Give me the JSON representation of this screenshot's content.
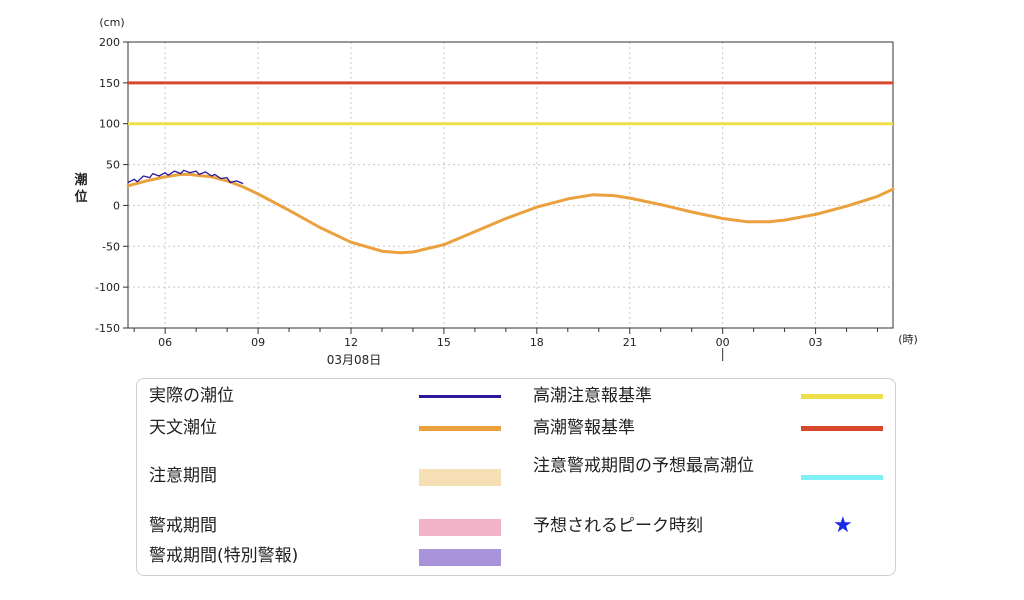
{
  "chart_data": {
    "type": "line",
    "y_unit": "(cm)",
    "ylabel": "潮位",
    "x_unit": "(時)",
    "date_label": "03月08日",
    "ylim": [
      -150,
      200
    ],
    "yticks": [
      200,
      150,
      100,
      50,
      0,
      -50,
      -100,
      -150
    ],
    "xlim_hours": [
      4.8,
      29.5
    ],
    "xticks": [
      {
        "hour": 6,
        "label": "06"
      },
      {
        "hour": 9,
        "label": "09"
      },
      {
        "hour": 12,
        "label": "12"
      },
      {
        "hour": 15,
        "label": "15"
      },
      {
        "hour": 18,
        "label": "18"
      },
      {
        "hour": 21,
        "label": "21"
      },
      {
        "hour": 24,
        "label": "00"
      },
      {
        "hour": 27,
        "label": "03"
      }
    ],
    "grid": true,
    "thresholds": [
      {
        "name": "高潮警報基準",
        "value": 150,
        "color": "#d9472b"
      },
      {
        "name": "高潮注意報基準",
        "value": 100,
        "color": "#eedf4a"
      }
    ],
    "series": [
      {
        "name": "天文潮位",
        "color": "#eaa13e",
        "x": [
          4.8,
          5.5,
          6.0,
          6.5,
          6.8,
          7.0,
          7.5,
          8.0,
          8.5,
          9.0,
          10.0,
          11.0,
          12.0,
          13.0,
          13.6,
          14.0,
          15.0,
          16.0,
          17.0,
          18.0,
          19.0,
          19.8,
          20.5,
          21.0,
          22.0,
          23.0,
          24.0,
          24.8,
          25.5,
          26.0,
          27.0,
          28.0,
          29.0,
          29.5
        ],
        "y": [
          24,
          31,
          35,
          38,
          38,
          37,
          35,
          30,
          23,
          14,
          -6,
          -27,
          -45,
          -56,
          -58,
          -57,
          -48,
          -32,
          -16,
          -2,
          8,
          13,
          12,
          9,
          1,
          -8,
          -16,
          -20,
          -20,
          -18,
          -11,
          -1,
          11,
          20
        ]
      },
      {
        "name": "実際の潮位",
        "color": "#2a1a9a",
        "x": [
          4.8,
          5.0,
          5.1,
          5.3,
          5.5,
          5.6,
          5.8,
          6.0,
          6.1,
          6.3,
          6.5,
          6.6,
          6.8,
          7.0,
          7.1,
          7.3,
          7.5,
          7.6,
          7.8,
          8.0,
          8.1,
          8.3,
          8.5
        ],
        "y": [
          28,
          32,
          29,
          36,
          34,
          39,
          36,
          40,
          37,
          42,
          39,
          43,
          40,
          42,
          38,
          41,
          36,
          38,
          33,
          34,
          28,
          30,
          27
        ]
      }
    ],
    "legend": [
      {
        "label": "実際の潮位",
        "kind": "line",
        "color": "#2a1a9a"
      },
      {
        "label": "高潮注意報基準",
        "kind": "line",
        "color": "#eedf4a"
      },
      {
        "label": "天文潮位",
        "kind": "line",
        "color": "#eaa13e"
      },
      {
        "label": "高潮警報基準",
        "kind": "line",
        "color": "#d9472b"
      },
      {
        "label": "注意期間",
        "kind": "box",
        "color": "#f6dfb4"
      },
      {
        "label": "注意警戒期間の予想最高潮位",
        "kind": "line",
        "color": "#7ef0f6"
      },
      {
        "label": "警戒期間",
        "kind": "box",
        "color": "#f2b3c9"
      },
      {
        "label": "予想されるピーク時刻",
        "kind": "star",
        "color": "#1a2ae6"
      },
      {
        "label": "警戒期間(特別警報)",
        "kind": "box",
        "color": "#a994dc"
      }
    ]
  }
}
